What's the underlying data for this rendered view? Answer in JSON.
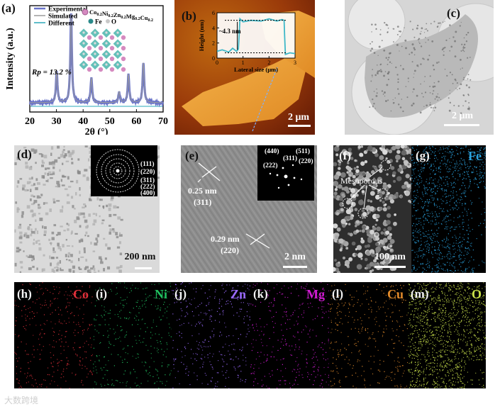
{
  "colors": {
    "experimental": "#6a74c9",
    "simulated": "#9a9a9a",
    "different": "#2aa9b8",
    "Co": "#e0303a",
    "Ni": "#20c060",
    "Zn": "#9b6bff",
    "Mg": "#d21cd4",
    "Cu": "#e0892a",
    "O": "#c9e04a",
    "Fe": "#2aa3e0"
  },
  "panel_a": {
    "label": "(a)",
    "legend": [
      "Experimental",
      "Simulated",
      "Different"
    ],
    "formula": "Co0.2Ni0.2Zn0.2Mg0.2Cu0.2",
    "formula_parts": [
      "Co",
      "0.2",
      "Ni",
      "0.2",
      "Zn",
      "0.2",
      "Mg",
      "0.2",
      "Cu",
      "0.2"
    ],
    "atom_labels": [
      "Fe",
      "O"
    ],
    "rp": "Rp = 13.2 %"
  },
  "chart_data": [
    {
      "type": "line",
      "title": "",
      "xlabel": "2θ (°)",
      "ylabel": "Intensity (a.u.)",
      "xlim": [
        20,
        70
      ],
      "xticks": [
        20,
        30,
        40,
        50,
        60,
        70
      ],
      "y_ticks_shown": false,
      "peaks_2theta": [
        30.1,
        35.5,
        43.1,
        53.5,
        57.0,
        62.6
      ],
      "peak_relative_intensity": [
        0.35,
        1.0,
        0.28,
        0.12,
        0.32,
        0.45
      ],
      "series": [
        {
          "name": "Experimental",
          "color": "#6a74c9"
        },
        {
          "name": "Simulated",
          "color": "#9a9a9a"
        },
        {
          "name": "Different",
          "color": "#2aa9b8"
        }
      ],
      "annotation": "Rp = 13.2 %"
    },
    {
      "type": "line",
      "title": "",
      "xlabel": "Lateral size (μm)",
      "ylabel": "Height (nm)",
      "xlim": [
        0,
        3
      ],
      "ylim": [
        0,
        6
      ],
      "xticks": [
        0,
        1,
        2,
        3
      ],
      "yticks": [
        0,
        2,
        4,
        6
      ],
      "x": [
        0.0,
        0.2,
        0.45,
        0.6,
        0.75,
        0.82,
        0.85,
        0.88,
        1.0,
        1.3,
        1.7,
        2.0,
        2.3,
        2.5,
        2.58,
        2.6,
        2.63,
        2.8,
        3.0
      ],
      "y": [
        0.9,
        1.1,
        0.8,
        1.3,
        0.9,
        1.2,
        3.0,
        5.2,
        4.8,
        5.0,
        4.9,
        5.2,
        4.9,
        5.1,
        5.0,
        3.0,
        0.5,
        0.7,
        0.6
      ],
      "annotation": "~4.3 nm"
    }
  ],
  "panel_b": {
    "label": "(b)",
    "inset_ylabel": "Height (nm)",
    "inset_xlabel": "Lateral size (μm)",
    "step": "~4.3 nm",
    "scale": "2 μm"
  },
  "panel_c": {
    "label": "(c)",
    "scale": "2 μm"
  },
  "panel_d": {
    "label": "(d)",
    "scale": "200 nm",
    "rings": [
      "(111)",
      "(220)",
      "(311)",
      "(222)",
      "(400)"
    ]
  },
  "panel_e": {
    "label": "(e)",
    "d1": "0.25 nm",
    "p1": "(311)",
    "d2": "0.29 nm",
    "p2": "(220)",
    "fft": [
      "(440)",
      "(511)",
      "(311)",
      "(222)",
      "(220)"
    ],
    "scale": "2 nm"
  },
  "panel_f": {
    "label": "(f)",
    "note": "Mesoporous",
    "scale": "100 nm"
  },
  "panel_g": {
    "label": "(g)",
    "element": "Fe"
  },
  "maps": [
    {
      "label": "(h)",
      "element": "Co"
    },
    {
      "label": "(i)",
      "element": "Ni"
    },
    {
      "label": "(j)",
      "element": "Zn"
    },
    {
      "label": "(k)",
      "element": "Mg"
    },
    {
      "label": "(l)",
      "element": "Cu"
    },
    {
      "label": "(m)",
      "element": "O"
    }
  ],
  "watermark": "大数跨境"
}
